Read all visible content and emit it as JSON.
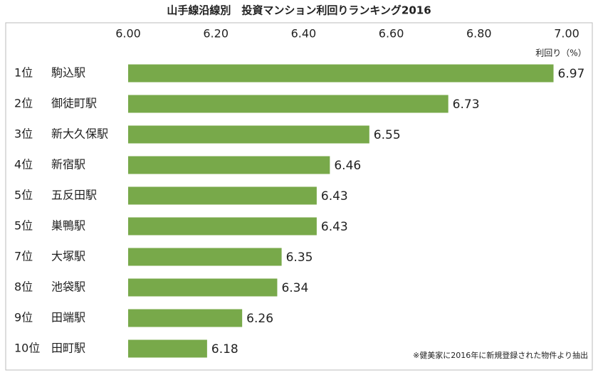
{
  "chart_data": {
    "type": "bar",
    "orientation": "horizontal",
    "title": "山手線沿線別　投資マンション利回りランキング2016",
    "x_axis_label": "利回り（%）",
    "note": "※健美家に2016年に新規登録された物件より抽出",
    "ranks": [
      "1位",
      "2位",
      "3位",
      "4位",
      "5位",
      "5位",
      "7位",
      "8位",
      "9位",
      "10位"
    ],
    "categories": [
      "駒込駅",
      "御徒町駅",
      "新大久保駅",
      "新宿駅",
      "五反田駅",
      "巣鴨駅",
      "大塚駅",
      "池袋駅",
      "田端駅",
      "田町駅"
    ],
    "values": [
      6.97,
      6.73,
      6.55,
      6.46,
      6.43,
      6.43,
      6.35,
      6.34,
      6.26,
      6.18
    ],
    "color": "#78a94a",
    "xlim": [
      6.0,
      7.0
    ],
    "xticks": [
      {
        "value": 6.0,
        "label": "6.00"
      },
      {
        "value": 6.2,
        "label": "6.20"
      },
      {
        "value": 6.4,
        "label": "6.40"
      },
      {
        "value": 6.6,
        "label": "6.60"
      },
      {
        "value": 6.8,
        "label": "6.80"
      },
      {
        "value": 7.0,
        "label": "7.00"
      }
    ]
  }
}
